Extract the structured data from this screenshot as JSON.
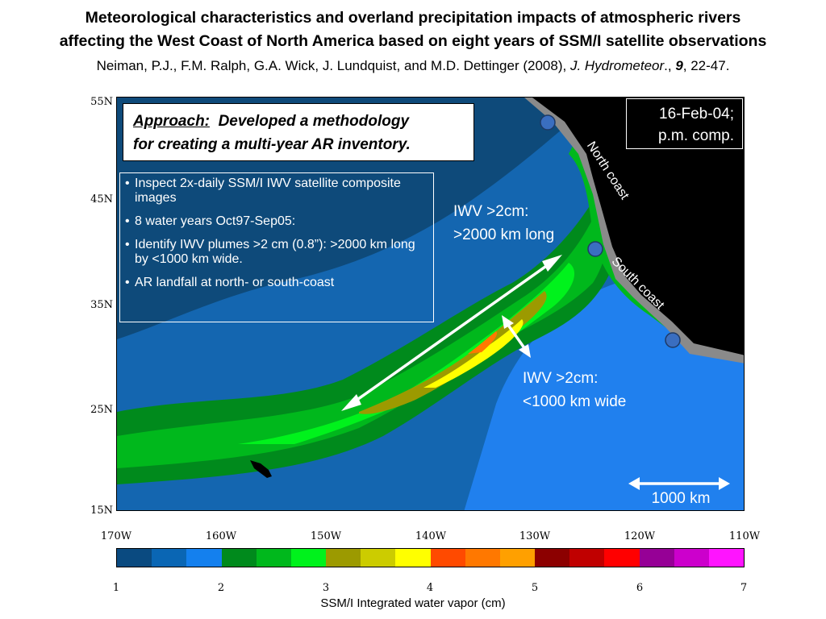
{
  "title_line1": "Meteorological characteristics and overland precipitation impacts of atmospheric rivers",
  "title_line2": "affecting the West Coast of North America based on eight years of SSM/I satellite observations",
  "citation": {
    "authors": "Neiman, P.J., F.M. Ralph, G.A. Wick, J. Lundquist, and M.D. Dettinger (2008), ",
    "journal": "J. Hydrometeor",
    "sep": "., ",
    "volume": "9",
    "pages": ", 22-47."
  },
  "approach": {
    "label": "Approach:",
    "text1": "Developed a methodology",
    "text2": "for creating a multi-year AR inventory."
  },
  "bullets": [
    "Inspect 2x-daily SSM/I IWV satellite composite images",
    "8 water years Oct97-Sep05:",
    "Identify IWV plumes >2 cm (0.8”): >2000 km long by <1000 km wide.",
    "AR landfall at north- or south-coast"
  ],
  "bullet_symbol": "•",
  "date_box": {
    "line1": "16-Feb-04;",
    "line2": "p.m. comp."
  },
  "annotations": {
    "long_line1": "IWV >2cm:",
    "long_line2": ">2000 km long",
    "wide_line1": "IWV >2cm:",
    "wide_line2": "<1000 km wide",
    "north_coast": "North coast",
    "south_coast": "South coast",
    "scale": "1000 km"
  },
  "lat_ticks": [
    "55N",
    "45N",
    "35N",
    "25N",
    "15N"
  ],
  "lon_ticks": [
    "170W",
    "160W",
    "150W",
    "140W",
    "130W",
    "120W",
    "110W"
  ],
  "colorbar": {
    "ticks": [
      "1",
      "2",
      "3",
      "4",
      "5",
      "6",
      "7"
    ],
    "label": "SSM/I Integrated water vapor (cm)",
    "colors": [
      "#0a4a80",
      "#0a66b4",
      "#1480ee",
      "#008a1c",
      "#00b81c",
      "#00f21c",
      "#9c9a00",
      "#cccc00",
      "#ffff00",
      "#ff4a00",
      "#ff7800",
      "#ffa000",
      "#8c0000",
      "#c00000",
      "#ff0000",
      "#960096",
      "#cc00cc",
      "#ff14ff"
    ]
  },
  "map_colors": {
    "ocean_dark": "#0e4a7a",
    "ocean_mid": "#1466b0",
    "ocean_bright": "#2080ee",
    "land": "#000000",
    "land_gray": "#8a8a8a",
    "green_dark": "#008a1c",
    "green": "#00b81c",
    "green_bright": "#00f21c",
    "olive": "#9c9a00",
    "yellow": "#ffff00",
    "orange": "#ff7800",
    "marker": "#3a6ec0"
  }
}
